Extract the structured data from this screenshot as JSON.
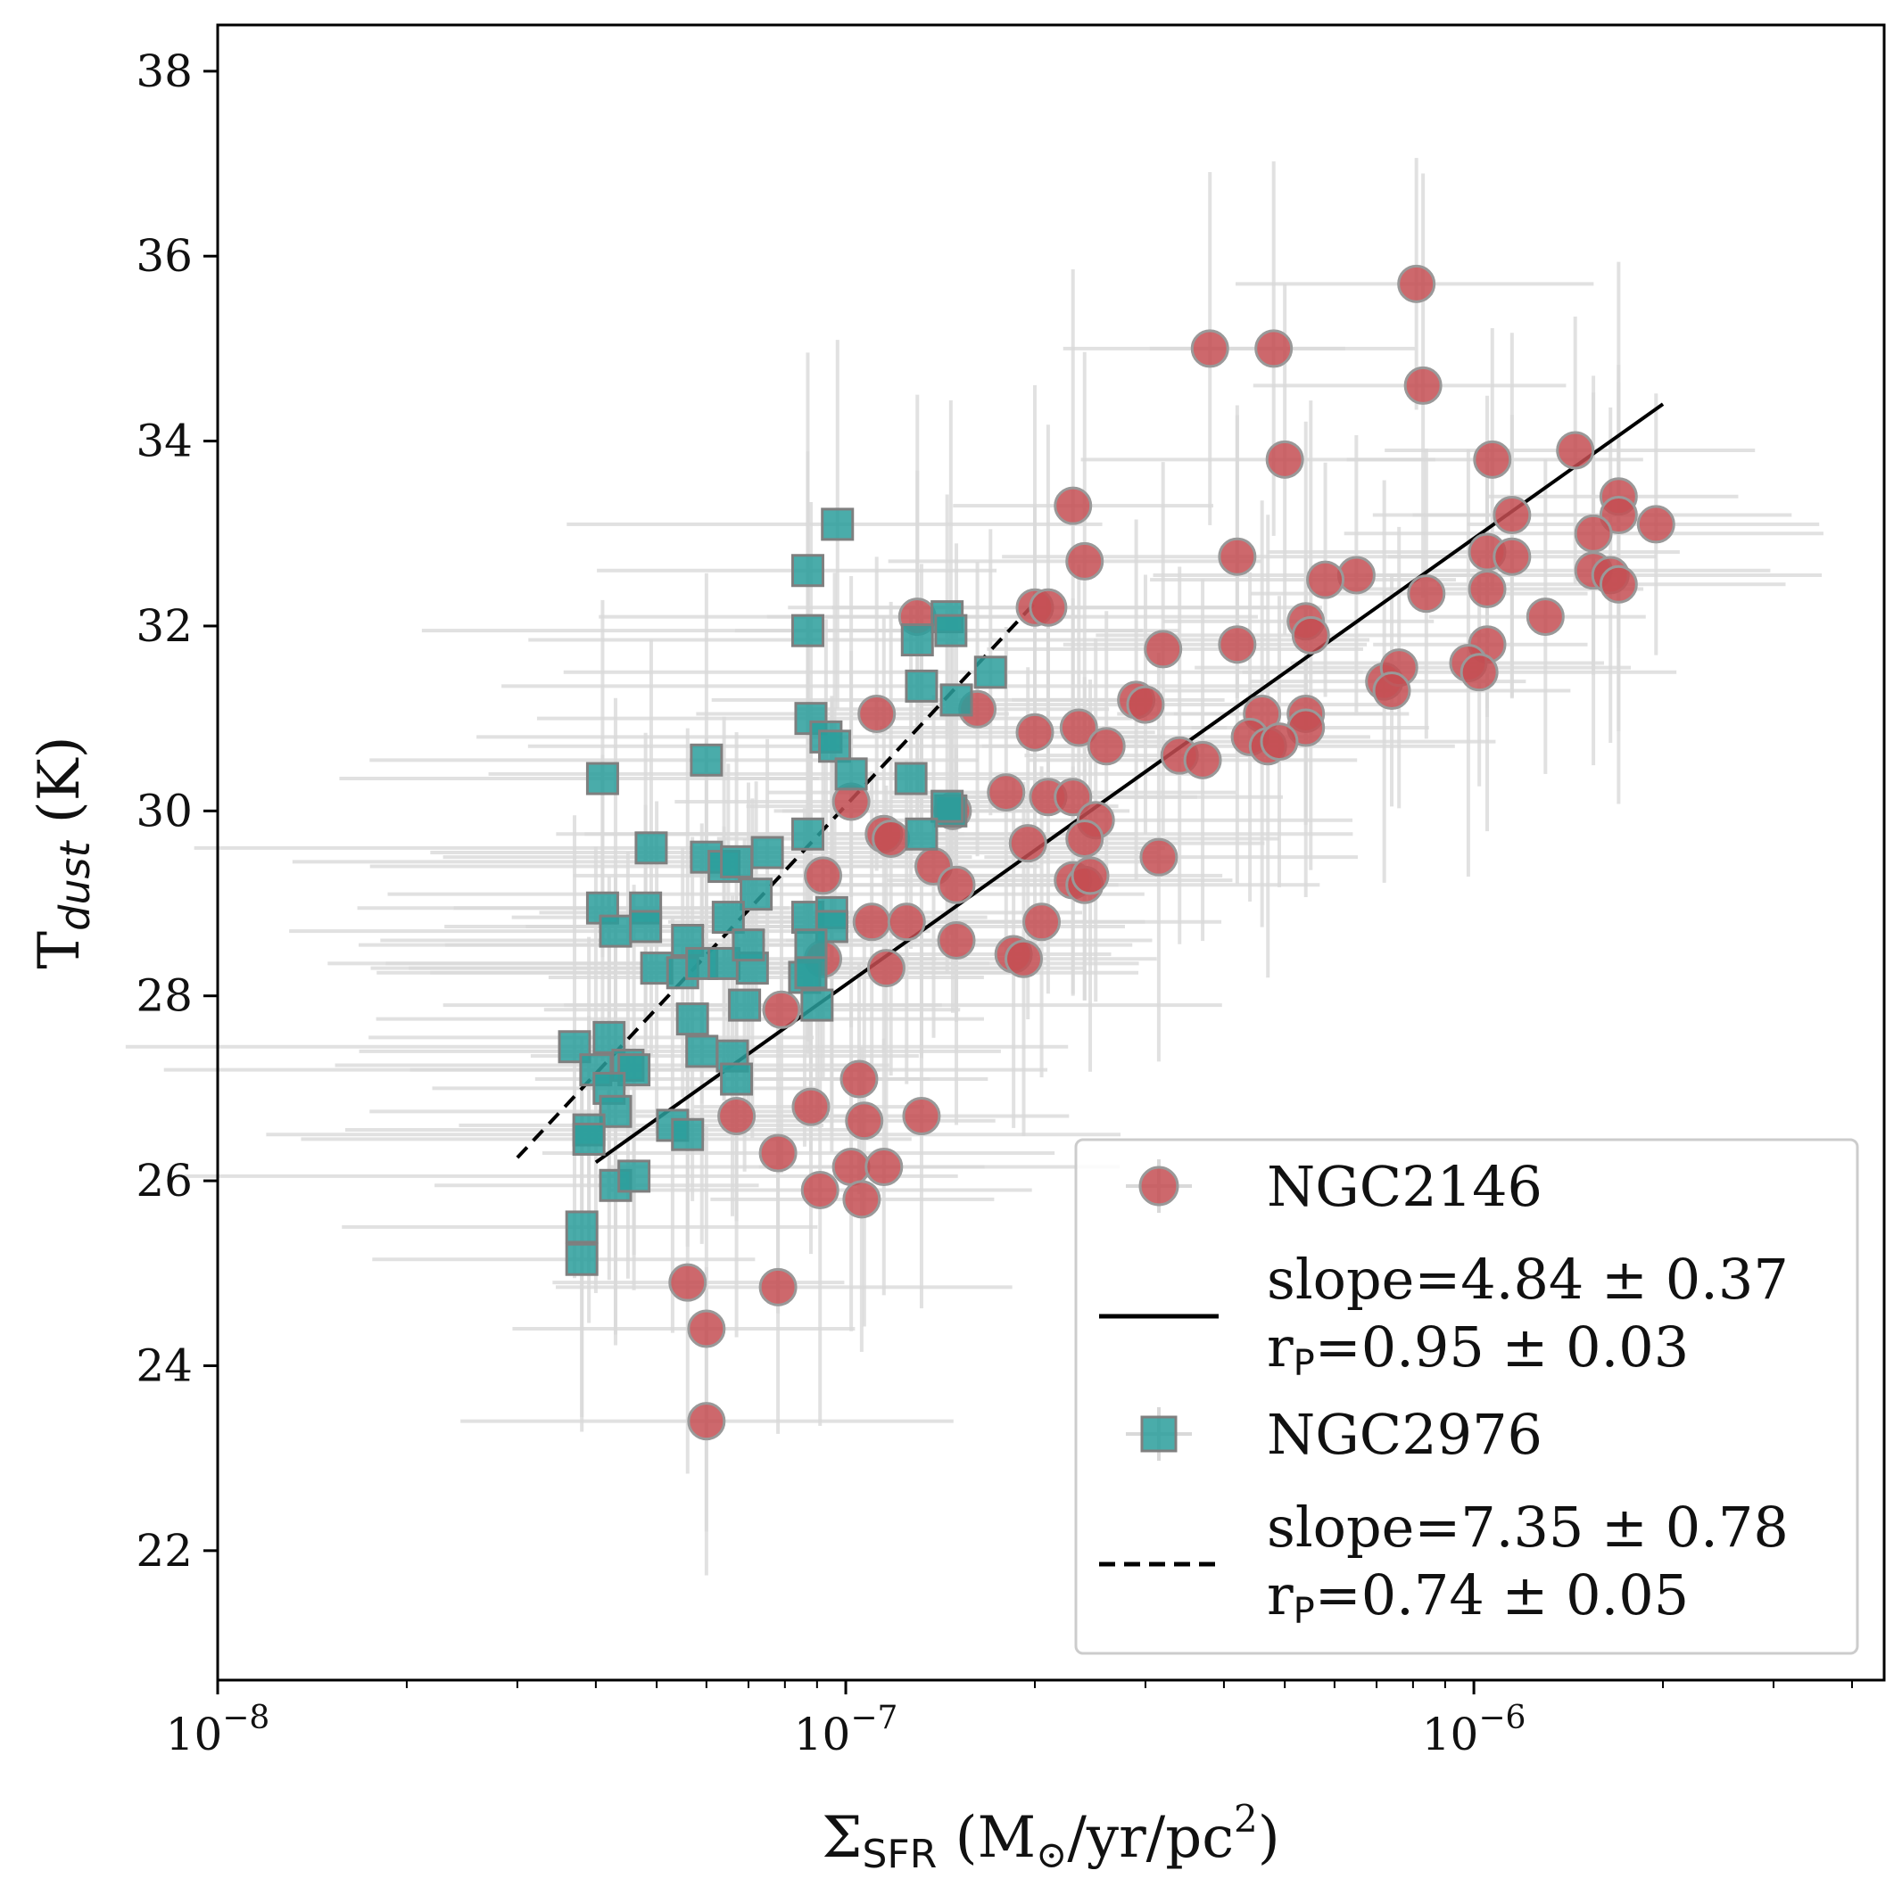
{
  "chart_data": {
    "type": "scatter",
    "title": "",
    "xscale": "log",
    "xlim": [
      1e-08,
      4.5e-06
    ],
    "ylim": [
      20.6,
      38.5
    ],
    "x_ticks": [
      {
        "value": 1e-08,
        "base": "10",
        "exp": "−8"
      },
      {
        "value": 1e-07,
        "base": "10",
        "exp": "−7"
      },
      {
        "value": 1e-06,
        "base": "10",
        "exp": "−6"
      }
    ],
    "y_ticks": [
      22,
      24,
      26,
      28,
      30,
      32,
      34,
      36,
      38
    ],
    "xlabel": {
      "sigma": "Σ",
      "sub": "SFR",
      "main": " (M",
      "odot": "⊙",
      "rest": "/yr/pc",
      "sup": "2",
      "close": ")"
    },
    "ylabel": {
      "main": "T",
      "sub": "dust",
      "rest": " (K)"
    },
    "legend_position": "lower-right",
    "errorbar_color": "#d9d9d9",
    "series": [
      {
        "name": "NGC2146",
        "marker": "circle",
        "color": "#c44e52",
        "edge": "#999999",
        "points": [
          [
            8.1e-07,
            35.7
          ],
          [
            3.8e-07,
            35.0
          ],
          [
            4.8e-07,
            35.0
          ],
          [
            8.3e-07,
            34.6
          ],
          [
            5e-07,
            33.8
          ],
          [
            1.07e-06,
            33.8
          ],
          [
            1.45e-06,
            33.9
          ],
          [
            2.3e-07,
            33.3
          ],
          [
            1.7e-06,
            33.4
          ],
          [
            1.15e-06,
            33.2
          ],
          [
            1.7e-06,
            33.2
          ],
          [
            1.55e-06,
            33.0
          ],
          [
            1.95e-06,
            33.1
          ],
          [
            1.05e-06,
            32.8
          ],
          [
            1.15e-06,
            32.75
          ],
          [
            4.2e-07,
            32.75
          ],
          [
            2.4e-07,
            32.7
          ],
          [
            6.5e-07,
            32.55
          ],
          [
            5.8e-07,
            32.5
          ],
          [
            1.55e-06,
            32.6
          ],
          [
            1.65e-06,
            32.55
          ],
          [
            1.7e-06,
            32.45
          ],
          [
            8.4e-07,
            32.35
          ],
          [
            1.05e-06,
            32.4
          ],
          [
            1.3e-07,
            32.1
          ],
          [
            2e-07,
            32.2
          ],
          [
            2.1e-07,
            32.2
          ],
          [
            1.3e-06,
            32.1
          ],
          [
            5.4e-07,
            32.05
          ],
          [
            5.5e-07,
            31.9
          ],
          [
            1.05e-06,
            31.8
          ],
          [
            4.2e-07,
            31.8
          ],
          [
            3.2e-07,
            31.75
          ],
          [
            9.8e-07,
            31.6
          ],
          [
            1.02e-06,
            31.5
          ],
          [
            7.2e-07,
            31.4
          ],
          [
            7.6e-07,
            31.55
          ],
          [
            7.4e-07,
            31.3
          ],
          [
            2.9e-07,
            31.2
          ],
          [
            3e-07,
            31.15
          ],
          [
            1.62e-07,
            31.1
          ],
          [
            1.12e-07,
            31.05
          ],
          [
            4.6e-07,
            31.05
          ],
          [
            5.4e-07,
            31.05
          ],
          [
            2.35e-07,
            30.9
          ],
          [
            4.4e-07,
            30.8
          ],
          [
            5.4e-07,
            30.9
          ],
          [
            4.7e-07,
            30.7
          ],
          [
            4.9e-07,
            30.75
          ],
          [
            2e-07,
            30.85
          ],
          [
            2.6e-07,
            30.7
          ],
          [
            3.4e-07,
            30.6
          ],
          [
            3.7e-07,
            30.55
          ],
          [
            1.8e-07,
            30.2
          ],
          [
            2.1e-07,
            30.15
          ],
          [
            2.3e-07,
            30.15
          ],
          [
            1.02e-07,
            30.1
          ],
          [
            1.48e-07,
            30.0
          ],
          [
            2.5e-07,
            29.9
          ],
          [
            1.15e-07,
            29.75
          ],
          [
            1.18e-07,
            29.7
          ],
          [
            2.4e-07,
            29.7
          ],
          [
            1.95e-07,
            29.65
          ],
          [
            3.15e-07,
            29.5
          ],
          [
            1.38e-07,
            29.4
          ],
          [
            9.2e-08,
            29.3
          ],
          [
            1.5e-07,
            29.2
          ],
          [
            2.3e-07,
            29.25
          ],
          [
            2.4e-07,
            29.2
          ],
          [
            2.45e-07,
            29.3
          ],
          [
            1.1e-07,
            28.8
          ],
          [
            1.25e-07,
            28.8
          ],
          [
            2.05e-07,
            28.8
          ],
          [
            1.5e-07,
            28.6
          ],
          [
            1.85e-07,
            28.45
          ],
          [
            1.92e-07,
            28.4
          ],
          [
            9.2e-08,
            28.4
          ],
          [
            1.16e-07,
            28.3
          ],
          [
            7.9e-08,
            27.85
          ],
          [
            1.05e-07,
            27.1
          ],
          [
            6.7e-08,
            26.7
          ],
          [
            8.8e-08,
            26.8
          ],
          [
            1.07e-07,
            26.65
          ],
          [
            1.32e-07,
            26.7
          ],
          [
            7.8e-08,
            26.3
          ],
          [
            1.02e-07,
            26.15
          ],
          [
            1.15e-07,
            26.15
          ],
          [
            9.1e-08,
            25.9
          ],
          [
            1.06e-07,
            25.8
          ],
          [
            5.6e-08,
            24.9
          ],
          [
            7.8e-08,
            24.85
          ],
          [
            6e-08,
            24.4
          ],
          [
            6e-08,
            23.4
          ]
        ]
      },
      {
        "name": "NGC2976",
        "marker": "square",
        "color": "#2a9d9b",
        "edge": "#7f7f7f",
        "points": [
          [
            9.7e-08,
            33.1
          ],
          [
            8.7e-08,
            32.6
          ],
          [
            8.7e-08,
            31.95
          ],
          [
            1.45e-07,
            32.1
          ],
          [
            1.47e-07,
            31.95
          ],
          [
            1.3e-07,
            31.85
          ],
          [
            1.32e-07,
            31.35
          ],
          [
            1.7e-07,
            31.5
          ],
          [
            1.5e-07,
            31.2
          ],
          [
            8.8e-08,
            31.0
          ],
          [
            9.3e-08,
            30.8
          ],
          [
            9.6e-08,
            30.7
          ],
          [
            4.1e-08,
            30.35
          ],
          [
            6e-08,
            30.55
          ],
          [
            1.02e-07,
            30.4
          ],
          [
            1.27e-07,
            30.35
          ],
          [
            1.47e-07,
            30.0
          ],
          [
            1.45e-07,
            30.05
          ],
          [
            1.32e-07,
            29.75
          ],
          [
            8.7e-08,
            29.75
          ],
          [
            4.9e-08,
            29.6
          ],
          [
            7.5e-08,
            29.55
          ],
          [
            6e-08,
            29.5
          ],
          [
            6.4e-08,
            29.4
          ],
          [
            6.7e-08,
            29.45
          ],
          [
            7.2e-08,
            29.1
          ],
          [
            4.1e-08,
            28.95
          ],
          [
            4.8e-08,
            28.95
          ],
          [
            4.3e-08,
            28.7
          ],
          [
            4.8e-08,
            28.75
          ],
          [
            6.5e-08,
            28.85
          ],
          [
            8.7e-08,
            28.85
          ],
          [
            9.5e-08,
            28.9
          ],
          [
            9.5e-08,
            28.75
          ],
          [
            8.8e-08,
            28.55
          ],
          [
            5.6e-08,
            28.6
          ],
          [
            5e-08,
            28.3
          ],
          [
            5.5e-08,
            28.25
          ],
          [
            5.9e-08,
            28.35
          ],
          [
            6.4e-08,
            28.35
          ],
          [
            7.1e-08,
            28.3
          ],
          [
            7e-08,
            28.55
          ],
          [
            8.6e-08,
            28.2
          ],
          [
            8.8e-08,
            28.25
          ],
          [
            5.7e-08,
            27.75
          ],
          [
            6.9e-08,
            27.9
          ],
          [
            9e-08,
            27.9
          ],
          [
            3.7e-08,
            27.45
          ],
          [
            4.2e-08,
            27.55
          ],
          [
            4e-08,
            27.2
          ],
          [
            4.5e-08,
            27.25
          ],
          [
            4.6e-08,
            27.2
          ],
          [
            5.9e-08,
            27.4
          ],
          [
            6.6e-08,
            27.35
          ],
          [
            6.7e-08,
            27.1
          ],
          [
            4.2e-08,
            27.0
          ],
          [
            4.3e-08,
            26.75
          ],
          [
            3.9e-08,
            26.55
          ],
          [
            3.9e-08,
            26.45
          ],
          [
            5.3e-08,
            26.6
          ],
          [
            5.6e-08,
            26.5
          ],
          [
            4.3e-08,
            25.95
          ],
          [
            4.6e-08,
            26.05
          ],
          [
            3.8e-08,
            25.5
          ],
          [
            3.8e-08,
            25.15
          ]
        ]
      }
    ],
    "fits": [
      {
        "series": "NGC2146",
        "style": "solid",
        "x": [
          4e-08,
          2e-06
        ],
        "y": [
          26.2,
          34.4
        ],
        "label_line1": "slope=4.84 ± 0.37",
        "label_line2_main": " r",
        "label_line2_sub": "P",
        "label_line2_rest": "=0.95 ± 0.03"
      },
      {
        "series": "NGC2976",
        "style": "dashed",
        "x": [
          3e-08,
          2e-07
        ],
        "y": [
          26.25,
          32.25
        ],
        "label_line1": "slope=7.35 ± 0.78",
        "label_line2_main": " r",
        "label_line2_sub": "P",
        "label_line2_rest": "=0.74 ± 0.05"
      }
    ]
  }
}
